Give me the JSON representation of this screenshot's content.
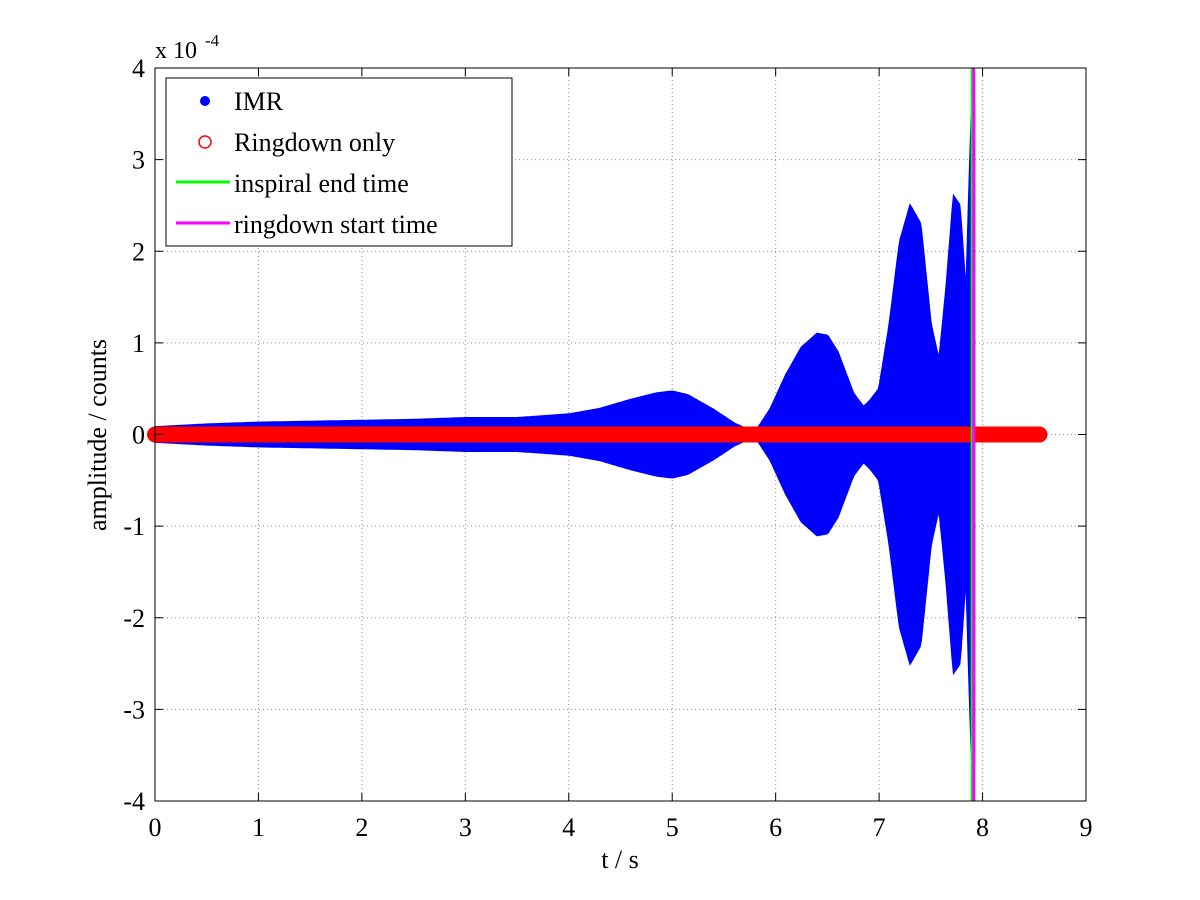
{
  "chart_data": {
    "type": "line",
    "xlabel": "t / s",
    "ylabel": "amplitude / counts",
    "y_exponent_label": {
      "base": "x 10",
      "exp": "-4"
    },
    "xlim": [
      0,
      9
    ],
    "ylim": [
      -4,
      4
    ],
    "xticks": [
      "0",
      "1",
      "2",
      "3",
      "4",
      "5",
      "6",
      "7",
      "8",
      "9"
    ],
    "yticks": [
      "-4",
      "-3",
      "-2",
      "-1",
      "0",
      "1",
      "2",
      "3",
      "4"
    ],
    "grid": true,
    "legend_position": "top-left",
    "legend": [
      {
        "label": "IMR",
        "marker": "dot",
        "color": "#0000ff"
      },
      {
        "label": "Ringdown only",
        "marker": "circle",
        "color": "#ff0000"
      },
      {
        "label": "inspiral end time",
        "marker": "line",
        "color": "#00ff00"
      },
      {
        "label": "ringdown start time",
        "marker": "line",
        "color": "#ff00ff"
      }
    ],
    "series": [
      {
        "name": "IMR",
        "style": "envelope",
        "color": "#0000ff",
        "t": [
          0,
          0.5,
          1,
          1.5,
          2,
          2.5,
          3,
          3.5,
          4,
          4.3,
          4.6,
          4.85,
          5.0,
          5.15,
          5.4,
          5.6,
          5.8,
          5.95,
          6.1,
          6.25,
          6.4,
          6.5,
          6.6,
          6.75,
          6.85,
          6.92,
          7.0,
          7.1,
          7.2,
          7.3,
          7.4,
          7.5,
          7.58,
          7.65,
          7.72,
          7.78,
          7.84,
          7.88,
          7.9,
          7.92
        ],
        "amplitude": [
          0.08,
          0.11,
          0.13,
          0.14,
          0.15,
          0.16,
          0.18,
          0.18,
          0.22,
          0.28,
          0.38,
          0.45,
          0.47,
          0.43,
          0.27,
          0.12,
          0.02,
          0.28,
          0.65,
          0.95,
          1.1,
          1.08,
          0.9,
          0.45,
          0.3,
          0.38,
          0.5,
          1.2,
          2.1,
          2.5,
          2.3,
          1.2,
          0.8,
          1.6,
          2.6,
          2.5,
          1.5,
          3.0,
          3.65,
          3.6
        ]
      },
      {
        "name": "Ringdown only",
        "style": "circles",
        "color": "#ff0000",
        "t_range": [
          0,
          8.55
        ],
        "value": 0
      }
    ],
    "vlines": [
      {
        "name": "inspiral end time",
        "x": 7.9,
        "color": "#00ff00"
      },
      {
        "name": "ringdown start time",
        "x": 7.915,
        "color": "#ff00ff"
      }
    ]
  }
}
